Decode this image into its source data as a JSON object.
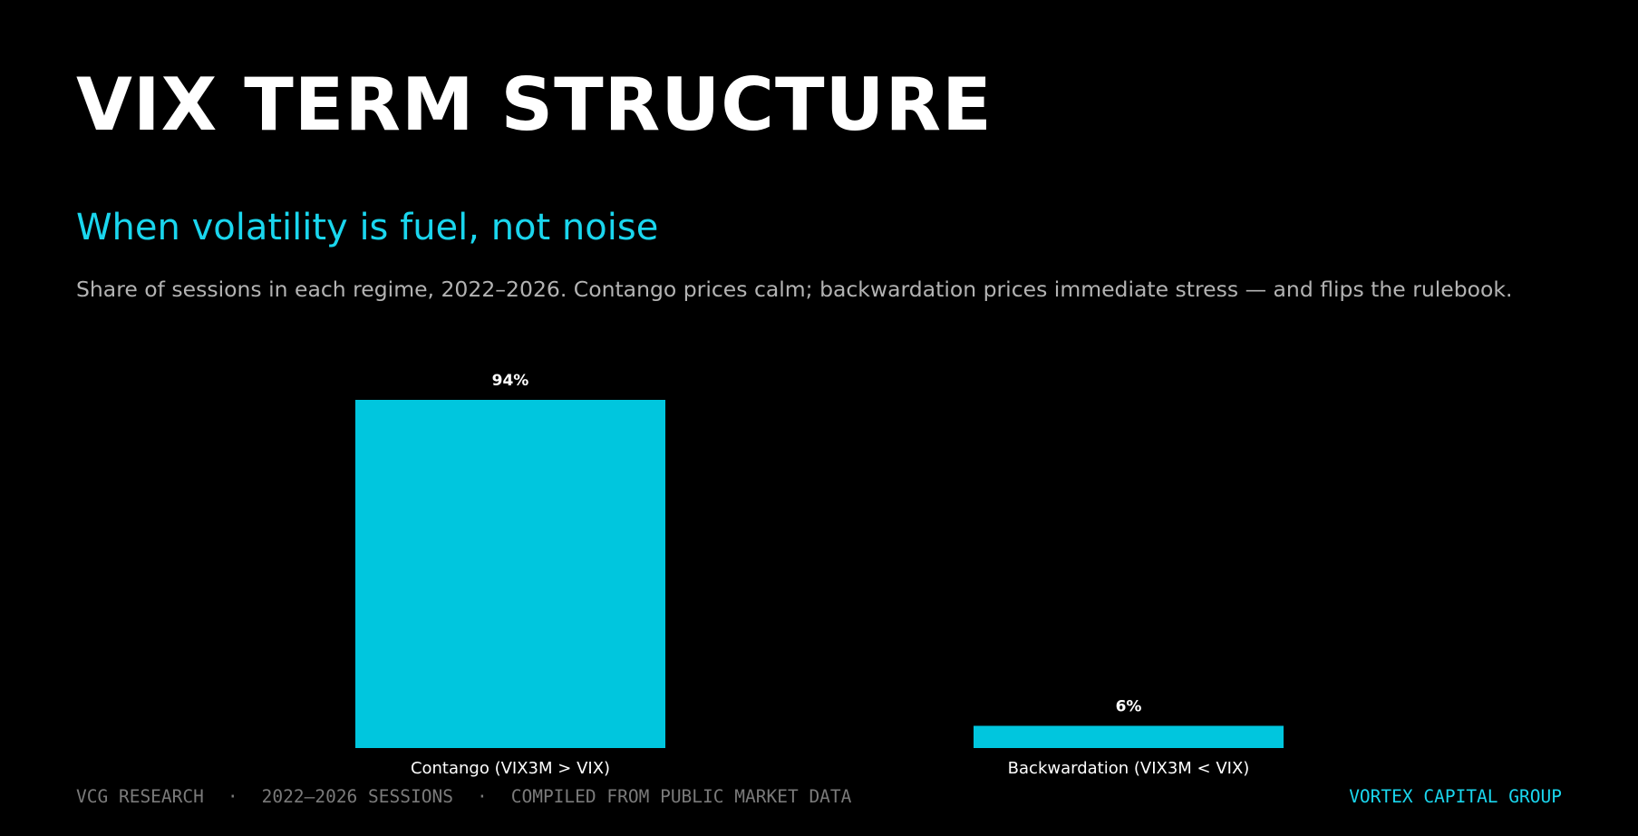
{
  "header": {
    "title": "VIX TERM STRUCTURE",
    "subtitle": "When volatility is fuel, not noise",
    "description": "Share of sessions in each regime, 2022–2026. Contango prices calm; backwardation prices immediate stress — and flips the rulebook."
  },
  "chart_data": {
    "type": "bar",
    "categories": [
      "Contango (VIX3M > VIX)",
      "Backwardation (VIX3M < VIX)"
    ],
    "values": [
      94,
      6
    ],
    "data_labels": [
      "94%",
      "6%"
    ],
    "ylim": [
      0,
      100
    ],
    "grid": false,
    "bar_color": "#00c6de"
  },
  "footer": {
    "source_parts": [
      "VCG RESEARCH",
      "2022–2026 SESSIONS",
      "COMPILED FROM PUBLIC MARKET DATA"
    ],
    "separator": "·",
    "brand": "VORTEX CAPITAL GROUP"
  },
  "colors": {
    "background": "#000000",
    "accent": "#1ad6ee",
    "title": "#ffffff",
    "muted": "#b3b3b3",
    "footer": "#7a7a7a"
  }
}
